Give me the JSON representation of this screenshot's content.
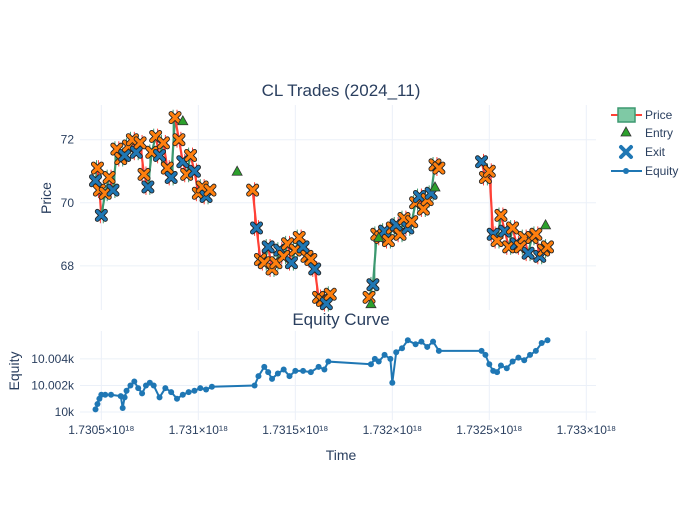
{
  "chart_data": [
    {
      "type": "candlestick",
      "title": "CL Trades (2024_11)",
      "ylabel": "Price",
      "ylim": [
        66.6,
        73.1
      ],
      "y_ticks": [
        68,
        70,
        72
      ],
      "y_tick_labels": [
        "68",
        "70",
        "72"
      ],
      "grid": true,
      "legend_position": "top-right",
      "legend": [
        {
          "name": "Price",
          "symbol": "candle"
        },
        {
          "name": "Entry",
          "symbol": "triangle"
        },
        {
          "name": "Exit",
          "symbol": "x"
        },
        {
          "name": "Equity",
          "symbol": "line-marker"
        }
      ],
      "colors": {
        "up": "#3d9970",
        "down": "#ff4136",
        "entry": "#2ca02c",
        "exit_long": "#1f77b4",
        "exit_short": "#ff7f0e",
        "equity": "#1f77b4"
      },
      "price_path": {
        "x": [
          1.73047e+18,
          1.73048e+18,
          1.73049e+18,
          1.7305e+18,
          1.73052e+18,
          1.73054e+18,
          1.73056e+18,
          1.73058e+18,
          1.7306e+18,
          1.73062e+18,
          1.73064e+18,
          1.73066e+18,
          1.73068e+18,
          1.7307e+18,
          1.73072e+18,
          1.73074e+18,
          1.73076e+18,
          1.73078e+18,
          1.7308e+18,
          1.73082e+18,
          1.73084e+18,
          1.73086e+18,
          1.73088e+18,
          1.7309e+18,
          1.73092e+18,
          1.73094e+18,
          1.73096e+18,
          1.73098e+18,
          1.731e+18,
          1.73102e+18,
          1.73104e+18,
          1.73106e+18,
          1.73128e+18,
          1.7313e+18,
          1.73132e+18,
          1.73134e+18,
          1.73136e+18,
          1.73138e+18,
          1.7314e+18,
          1.73142e+18,
          1.73144e+18,
          1.73146e+18,
          1.73148e+18,
          1.7315e+18,
          1.73152e+18,
          1.73154e+18,
          1.73156e+18,
          1.73158e+18,
          1.7316e+18,
          1.73162e+18,
          1.73164e+18,
          1.73166e+18,
          1.73168e+18,
          1.73188e+18,
          1.7319e+18,
          1.73192e+18,
          1.73194e+18,
          1.73196e+18,
          1.73198e+18,
          1.732e+18,
          1.73202e+18,
          1.73204e+18,
          1.73206e+18,
          1.73208e+18,
          1.7321e+18,
          1.73212e+18,
          1.73214e+18,
          1.73216e+18,
          1.73218e+18,
          1.7322e+18,
          1.73222e+18,
          1.73224e+18,
          1.73246e+18,
          1.73248e+18,
          1.7325e+18,
          1.73252e+18,
          1.73254e+18,
          1.73256e+18,
          1.73258e+18,
          1.7326e+18,
          1.73262e+18,
          1.73264e+18,
          1.73266e+18,
          1.73268e+18,
          1.7327e+18,
          1.73272e+18,
          1.73274e+18,
          1.73276e+18,
          1.73278e+18,
          1.7328e+18
        ],
        "y": [
          70.7,
          71.1,
          70.4,
          69.6,
          70.3,
          70.8,
          70.4,
          71.7,
          71.4,
          71.5,
          71.8,
          72.0,
          71.6,
          71.9,
          70.9,
          70.5,
          71.6,
          72.1,
          71.5,
          71.9,
          71.1,
          70.8,
          72.7,
          72.0,
          71.3,
          70.9,
          71.5,
          71.0,
          70.3,
          70.5,
          70.2,
          70.4,
          70.4,
          69.2,
          68.2,
          68.1,
          68.6,
          67.9,
          68.1,
          68.5,
          68.3,
          68.7,
          68.1,
          68.5,
          68.9,
          68.6,
          68.3,
          68.2,
          67.9,
          67.0,
          66.9,
          66.8,
          67.1,
          67.0,
          67.4,
          69.0,
          68.9,
          69.1,
          68.8,
          69.2,
          69.3,
          69.0,
          69.5,
          69.2,
          69.4,
          70.0,
          70.2,
          69.8,
          70.1,
          70.3,
          71.2,
          71.1,
          71.3,
          70.8,
          71.0,
          69.0,
          68.8,
          69.6,
          69.1,
          68.6,
          69.2,
          68.7,
          68.6,
          68.9,
          68.4,
          68.9,
          69.0,
          68.3,
          68.5,
          68.6
        ]
      },
      "entries": [
        {
          "x": 1.73092e+18,
          "y": 72.6
        },
        {
          "x": 1.7312e+18,
          "y": 71.0
        },
        {
          "x": 1.73189e+18,
          "y": 66.8
        },
        {
          "x": 1.73193e+18,
          "y": 68.9
        },
        {
          "x": 1.73222e+18,
          "y": 70.5
        },
        {
          "x": 1.73279e+18,
          "y": 69.3
        }
      ]
    },
    {
      "type": "line",
      "title": "Equity Curve",
      "xlabel": "Time",
      "ylabel": "Equity",
      "xlim": [
        1.73039e+18,
        1.73305e+18
      ],
      "x_ticks": [
        1.7305e+18,
        1.731e+18,
        1.7315e+18,
        1.732e+18,
        1.7325e+18,
        1.733e+18
      ],
      "x_tick_labels": [
        "1.7305×10¹⁸",
        "1.731×10¹⁸",
        "1.7315×10¹⁸",
        "1.732×10¹⁸",
        "1.7325×10¹⁸",
        "1.733×10¹⁸"
      ],
      "ylim": [
        9999.4,
        10006.1
      ],
      "y_ticks": [
        10000,
        10002,
        10004
      ],
      "y_tick_labels": [
        "10k",
        "10.002k",
        "10.004k"
      ],
      "grid": true,
      "series": [
        {
          "name": "Equity",
          "x": [
            1.73047e+18,
            1.73048e+18,
            1.73049e+18,
            1.7305e+18,
            1.73052e+18,
            1.73055e+18,
            1.7306e+18,
            1.73061e+18,
            1.73062e+18,
            1.73063e+18,
            1.73065e+18,
            1.73067e+18,
            1.73069e+18,
            1.73071e+18,
            1.73073e+18,
            1.73075e+18,
            1.73077e+18,
            1.7308e+18,
            1.73083e+18,
            1.73086e+18,
            1.73089e+18,
            1.73092e+18,
            1.73095e+18,
            1.73098e+18,
            1.73101e+18,
            1.73104e+18,
            1.73107e+18,
            1.73129e+18,
            1.73131e+18,
            1.73134e+18,
            1.73136e+18,
            1.73138e+18,
            1.73141e+18,
            1.73144e+18,
            1.73147e+18,
            1.7315e+18,
            1.73154e+18,
            1.73158e+18,
            1.73162e+18,
            1.73165e+18,
            1.73167e+18,
            1.73189e+18,
            1.73191e+18,
            1.73193e+18,
            1.73196e+18,
            1.73199e+18,
            1.732e+18,
            1.73202e+18,
            1.73205e+18,
            1.73208e+18,
            1.73212e+18,
            1.73215e+18,
            1.73218e+18,
            1.73221e+18,
            1.73224e+18,
            1.73246e+18,
            1.73248e+18,
            1.7325e+18,
            1.73252e+18,
            1.73254e+18,
            1.73256e+18,
            1.73259e+18,
            1.73262e+18,
            1.73265e+18,
            1.73268e+18,
            1.73271e+18,
            1.73274e+18,
            1.73277e+18,
            1.7328e+18
          ],
          "y": [
            10000.2,
            10000.6,
            10001.0,
            10001.3,
            10001.3,
            10001.3,
            10001.2,
            10000.3,
            10001.1,
            10001.6,
            10002.0,
            10002.3,
            10001.8,
            10001.4,
            10002.0,
            10002.2,
            10002.0,
            10001.1,
            10001.8,
            10001.5,
            10001.0,
            10001.3,
            10001.5,
            10001.6,
            10001.8,
            10001.7,
            10001.9,
            10002.0,
            10002.7,
            10003.4,
            10003.0,
            10002.5,
            10002.9,
            10003.2,
            10002.7,
            10003.1,
            10003.1,
            10003.0,
            10003.4,
            10003.2,
            10003.8,
            10003.6,
            10004.0,
            10003.8,
            10004.3,
            10004.0,
            10002.2,
            10004.5,
            10004.8,
            10005.4,
            10005.1,
            10005.3,
            10004.9,
            10005.3,
            10004.6,
            10004.6,
            10004.3,
            10003.6,
            10003.1,
            10003.0,
            10003.5,
            10003.3,
            10003.8,
            10004.1,
            10003.9,
            10004.3,
            10004.6,
            10005.2,
            10005.4
          ]
        }
      ]
    }
  ]
}
